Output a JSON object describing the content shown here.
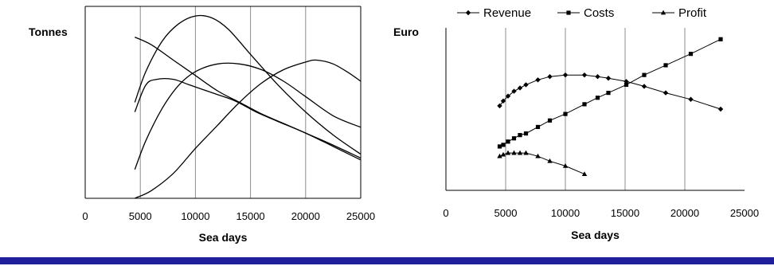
{
  "chart_data": [
    {
      "type": "line",
      "ylabel": "Tonnes",
      "xlabel": "Sea days",
      "x_ticks": [
        "0",
        "5000",
        "10000",
        "15000",
        "20000",
        "25000"
      ],
      "xlim": [
        0,
        25000
      ],
      "ylim": [
        0,
        100
      ],
      "y_ticks_shown": false,
      "grid": "vertical",
      "series": [
        {
          "x": [
            4500,
            5500,
            7000,
            8500,
            10000,
            11500,
            13000,
            15000,
            17500,
            20000,
            22500,
            25000
          ],
          "y": [
            50,
            66,
            82,
            91,
            95,
            94,
            88,
            75,
            59,
            45,
            33,
            23
          ]
        },
        {
          "x": [
            4500,
            6000,
            8000,
            10000,
            12000,
            14000,
            16000,
            18000,
            20000,
            22000,
            25000
          ],
          "y": [
            84,
            80,
            72,
            64,
            56,
            50,
            44,
            39,
            34,
            29,
            21
          ]
        },
        {
          "x": [
            4500,
            5500,
            7000,
            8500,
            10000,
            12000,
            14000,
            16000,
            18000,
            20000,
            22500,
            25000
          ],
          "y": [
            15,
            30,
            47,
            59,
            66,
            70,
            70,
            67,
            61,
            53,
            43,
            37
          ]
        },
        {
          "x": [
            4500,
            5500,
            6500,
            8000,
            9500,
            11500,
            13500,
            15500,
            17500,
            20000,
            22500,
            25000
          ],
          "y": [
            45,
            59,
            62,
            62,
            59,
            55,
            51,
            45,
            40,
            34,
            27,
            20
          ]
        },
        {
          "x": [
            4500,
            6000,
            8000,
            10000,
            12000,
            14000,
            16000,
            18000,
            20000,
            21000,
            22500,
            24000,
            25000
          ],
          "y": [
            0,
            4,
            13,
            26,
            38,
            50,
            60,
            67,
            71,
            72,
            70,
            65,
            61
          ]
        }
      ]
    },
    {
      "type": "line",
      "ylabel": "Euro",
      "xlabel": "Sea days",
      "x_ticks": [
        "0",
        "5000",
        "10000",
        "15000",
        "20000",
        "25000"
      ],
      "xlim": [
        0,
        25000
      ],
      "ylim": [
        0,
        100
      ],
      "y_ticks_shown": false,
      "grid": "vertical",
      "legend": "top",
      "series": [
        {
          "name": "Revenue",
          "marker": "diamond",
          "x": [
            4500,
            4800,
            5200,
            5700,
            6200,
            6700,
            7700,
            8700,
            10000,
            11600,
            12700,
            13600,
            15100,
            16600,
            18400,
            20500,
            23000
          ],
          "y": [
            52,
            55,
            58,
            61,
            63,
            65,
            68,
            70,
            71,
            71,
            70,
            69,
            67,
            64,
            60,
            56,
            50
          ]
        },
        {
          "name": "Costs",
          "marker": "square",
          "x": [
            4500,
            4800,
            5200,
            5700,
            6200,
            6700,
            7700,
            8700,
            10000,
            11600,
            12700,
            13600,
            15100,
            16600,
            18400,
            20500,
            23000
          ],
          "y": [
            27,
            28,
            30,
            32,
            34,
            35,
            39,
            43,
            47,
            53,
            57,
            60,
            65,
            71,
            77,
            84,
            93
          ]
        },
        {
          "name": "Profit",
          "marker": "triangle",
          "x": [
            4500,
            4800,
            5200,
            5700,
            6200,
            6700,
            7700,
            8700,
            10000,
            11600
          ],
          "y": [
            21,
            22,
            23,
            23,
            23,
            23,
            21,
            18,
            15,
            10
          ]
        }
      ]
    }
  ]
}
